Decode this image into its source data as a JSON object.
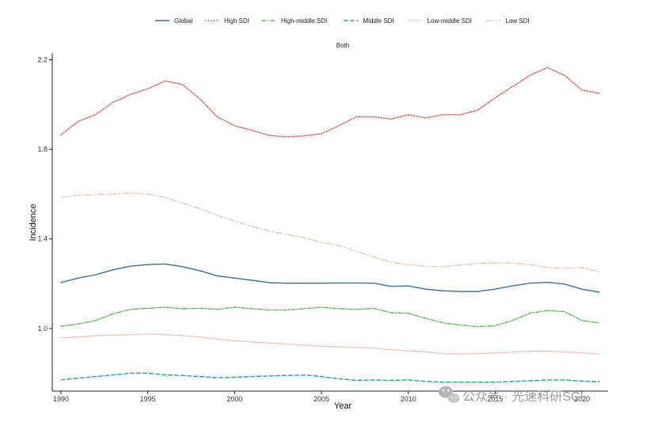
{
  "chart_data": {
    "type": "line",
    "title": "Both",
    "xlabel": "Year",
    "ylabel": "Incidence",
    "xlim": [
      1989.5,
      2021.5
    ],
    "ylim": [
      0.72,
      2.23
    ],
    "x_ticks": [
      "1990",
      "1995",
      "2000",
      "2005",
      "2010",
      "2015",
      "2020"
    ],
    "y_ticks": [
      "1.0",
      "1.4",
      "1.8",
      "2.2"
    ],
    "legend_position": "top",
    "grid": false,
    "x": [
      1990,
      1991,
      1992,
      1993,
      1994,
      1995,
      1996,
      1997,
      1998,
      1999,
      2000,
      2001,
      2002,
      2003,
      2004,
      2005,
      2006,
      2007,
      2008,
      2009,
      2010,
      2011,
      2012,
      2013,
      2014,
      2015,
      2016,
      2017,
      2018,
      2019,
      2020,
      2021
    ],
    "series": [
      {
        "name": "Global",
        "color": "#3a6f9a",
        "dash": "solid",
        "values": [
          1.205,
          1.225,
          1.24,
          1.262,
          1.278,
          1.285,
          1.288,
          1.276,
          1.258,
          1.235,
          1.225,
          1.215,
          1.205,
          1.202,
          1.202,
          1.202,
          1.203,
          1.203,
          1.202,
          1.188,
          1.19,
          1.175,
          1.168,
          1.165,
          1.165,
          1.176,
          1.19,
          1.202,
          1.206,
          1.198,
          1.175,
          1.162
        ]
      },
      {
        "name": "High SDI",
        "color": "#d9534f",
        "dash": "dotted",
        "values": [
          1.865,
          1.925,
          1.955,
          2.01,
          2.045,
          2.07,
          2.105,
          2.09,
          2.025,
          1.945,
          1.905,
          1.885,
          1.862,
          1.855,
          1.86,
          1.87,
          1.905,
          1.945,
          1.945,
          1.935,
          1.955,
          1.94,
          1.955,
          1.955,
          1.975,
          2.03,
          2.08,
          2.13,
          2.165,
          2.13,
          2.065,
          2.05
        ]
      },
      {
        "name": "High-middle SDI",
        "color": "#5cb85c",
        "dash": "dashdot",
        "values": [
          1.01,
          1.02,
          1.035,
          1.065,
          1.085,
          1.09,
          1.095,
          1.088,
          1.09,
          1.085,
          1.095,
          1.088,
          1.082,
          1.082,
          1.088,
          1.095,
          1.088,
          1.085,
          1.09,
          1.07,
          1.068,
          1.045,
          1.025,
          1.015,
          1.008,
          1.012,
          1.035,
          1.068,
          1.08,
          1.075,
          1.035,
          1.025
        ]
      },
      {
        "name": "Middle SDI",
        "color": "#1fa88a",
        "dash": "dashed",
        "values": [
          0.77,
          0.778,
          0.785,
          0.792,
          0.8,
          0.8,
          0.793,
          0.79,
          0.785,
          0.78,
          0.782,
          0.785,
          0.788,
          0.79,
          0.792,
          0.785,
          0.775,
          0.768,
          0.77,
          0.768,
          0.77,
          0.763,
          0.76,
          0.76,
          0.76,
          0.76,
          0.763,
          0.766,
          0.77,
          0.77,
          0.765,
          0.762
        ]
      },
      {
        "name": "Low-middle SDI",
        "color": "#e8b4b4",
        "dash": "dotted",
        "values": [
          0.958,
          0.962,
          0.968,
          0.97,
          0.972,
          0.975,
          0.972,
          0.968,
          0.962,
          0.952,
          0.945,
          0.94,
          0.935,
          0.93,
          0.925,
          0.92,
          0.918,
          0.915,
          0.912,
          0.905,
          0.9,
          0.895,
          0.888,
          0.885,
          0.888,
          0.89,
          0.895,
          0.898,
          0.898,
          0.895,
          0.892,
          0.885
        ]
      },
      {
        "name": "Low SDI",
        "color": "#e3c7b8",
        "dash": "longdashdot",
        "values": [
          1.585,
          1.595,
          1.598,
          1.6,
          1.605,
          1.6,
          1.585,
          1.56,
          1.535,
          1.505,
          1.48,
          1.455,
          1.435,
          1.42,
          1.405,
          1.385,
          1.37,
          1.345,
          1.32,
          1.295,
          1.285,
          1.278,
          1.275,
          1.283,
          1.29,
          1.293,
          1.292,
          1.285,
          1.272,
          1.268,
          1.272,
          1.252
        ]
      }
    ]
  },
  "watermark": {
    "text": "公众号 · 光速科研SCI",
    "icon": "wechat-icon"
  }
}
